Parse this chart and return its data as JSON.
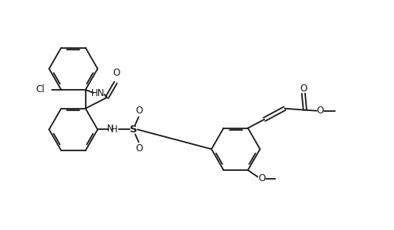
{
  "bg_color": "#ffffff",
  "line_color": "#1a1a1a",
  "line_width": 1.3,
  "font_size": 8.5,
  "figsize": [
    5.02,
    2.92
  ],
  "dpi": 100,
  "xlim": [
    0,
    10.04
  ],
  "ylim": [
    0,
    5.84
  ]
}
